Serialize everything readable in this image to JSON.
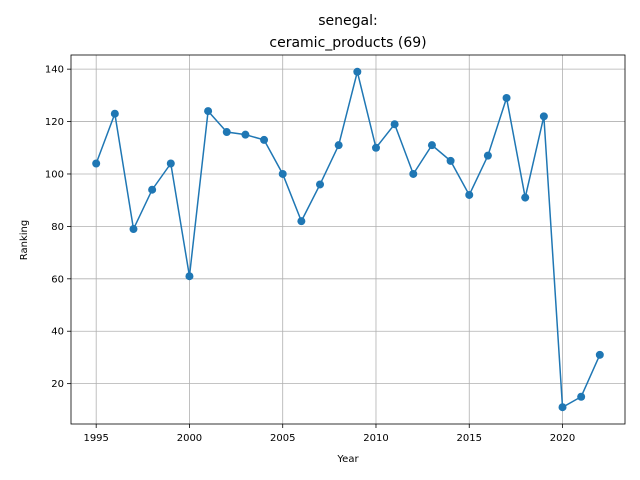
{
  "chart_data": {
    "type": "line",
    "title_line1": "senegal:",
    "title_line2": "ceramic_products (69)",
    "xlabel": "Year",
    "ylabel": "Ranking",
    "xlim": [
      1993.65,
      2023.35
    ],
    "ylim": [
      4.6,
      145.4
    ],
    "xticks": [
      1995,
      2000,
      2005,
      2010,
      2015,
      2020
    ],
    "yticks": [
      20,
      40,
      60,
      80,
      100,
      120,
      140
    ],
    "grid": true,
    "color": "#1f77b4",
    "series": [
      {
        "x": [
          1995,
          1996,
          1997,
          1998,
          1999,
          2000,
          2001,
          2002,
          2003,
          2004,
          2005,
          2006,
          2007,
          2008,
          2009,
          2010,
          2011,
          2012,
          2013,
          2014,
          2015,
          2016,
          2017,
          2018,
          2019,
          2020,
          2021,
          2022
        ],
        "y": [
          104,
          123,
          79,
          94,
          104,
          61,
          124,
          116,
          115,
          113,
          100,
          82,
          96,
          111,
          139,
          110,
          119,
          100,
          111,
          105,
          92,
          107,
          129,
          91,
          122,
          11,
          15,
          31
        ]
      }
    ]
  }
}
